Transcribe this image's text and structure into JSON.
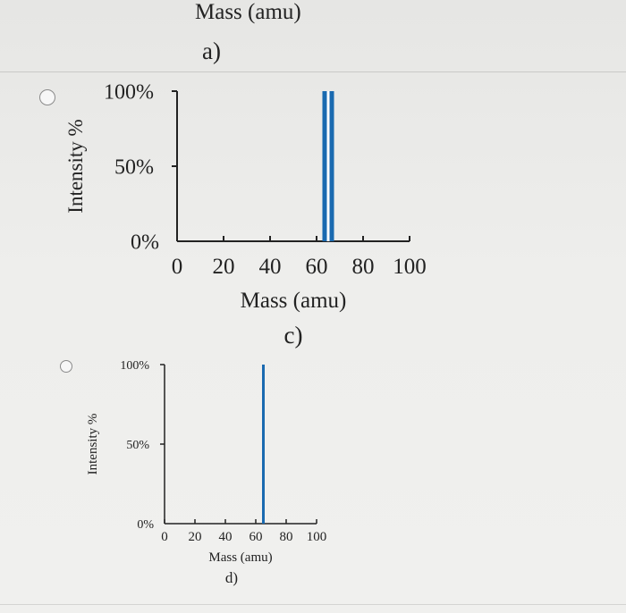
{
  "top_fragment": {
    "xlabel": "Mass (amu)",
    "option_label": "a)"
  },
  "chart_data": [
    {
      "type": "bar",
      "option_label": "c)",
      "x": [
        65
      ],
      "values": [
        100
      ],
      "xlabel": "Mass (amu)",
      "ylabel": "Intensity %",
      "xlim": [
        0,
        100
      ],
      "ylim": [
        0,
        100
      ],
      "xticks": [
        "0",
        "20",
        "40",
        "60",
        "80",
        "100"
      ],
      "yticks": [
        "0%",
        "50%",
        "100%"
      ],
      "grid": false,
      "bar_color": "#1a6ab0"
    },
    {
      "type": "bar",
      "option_label": "d)",
      "x": [
        65
      ],
      "values": [
        100
      ],
      "xlabel": "Mass (amu)",
      "ylabel": "Intensity %",
      "xlim": [
        0,
        100
      ],
      "ylim": [
        0,
        100
      ],
      "xticks": [
        "0",
        "20",
        "40",
        "60",
        "80",
        "100"
      ],
      "yticks": [
        "0%",
        "50%",
        "100%"
      ],
      "grid": false,
      "bar_color": "#1a6ab0"
    }
  ]
}
